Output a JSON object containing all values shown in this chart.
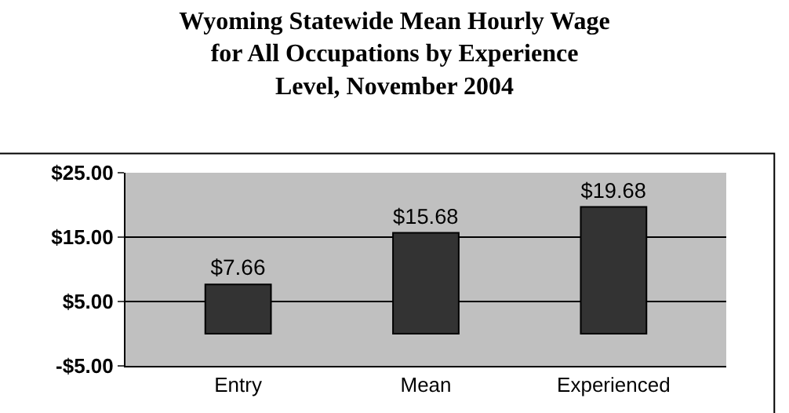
{
  "chart_data": {
    "type": "bar",
    "title": "Wyoming Statewide Mean Hourly Wage\nfor All Occupations by Experience\nLevel, November 2004",
    "categories": [
      "Entry",
      "Mean",
      "Experienced"
    ],
    "values": [
      7.66,
      15.68,
      19.68
    ],
    "value_labels": [
      "$7.66",
      "$15.68",
      "$19.68"
    ],
    "color": "#333333",
    "ylim": [
      -5,
      25
    ],
    "yticks": [
      {
        "value": -5,
        "label": "-$5.00"
      },
      {
        "value": 5,
        "label": "$5.00"
      },
      {
        "value": 15,
        "label": "$15.00"
      },
      {
        "value": 25,
        "label": "$25.00"
      }
    ],
    "grid": "y",
    "legend": false
  }
}
